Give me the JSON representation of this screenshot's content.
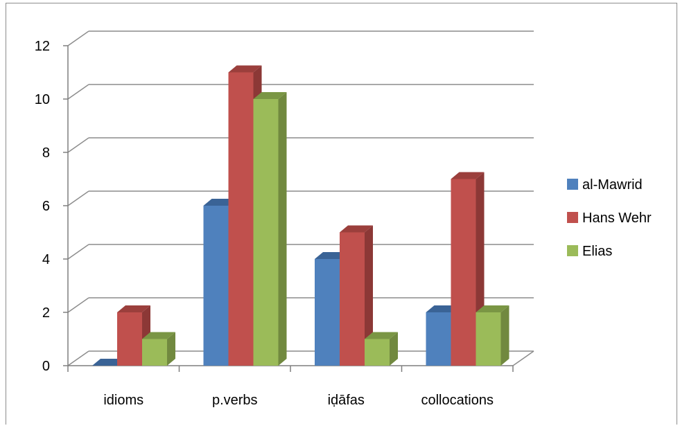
{
  "chart_data": {
    "type": "bar",
    "categories": [
      "idioms",
      "p.verbs",
      "iḍāfas",
      "collocations"
    ],
    "series": [
      {
        "name": "al-Mawrid",
        "values": [
          0,
          6,
          4,
          2
        ],
        "color": "#4F81BD",
        "side_color": "#385D8A",
        "top_color": "#3A6396"
      },
      {
        "name": "Hans Wehr",
        "values": [
          2,
          11,
          5,
          7
        ],
        "color": "#C0504D",
        "side_color": "#8C3836",
        "top_color": "#9B3F3C"
      },
      {
        "name": "Elias",
        "values": [
          1,
          10,
          1,
          2
        ],
        "color": "#9BBB59",
        "side_color": "#71893F",
        "top_color": "#7A9644"
      }
    ],
    "yticks": [
      "0",
      "2",
      "4",
      "6",
      "8",
      "10",
      "12"
    ],
    "ylim": [
      0,
      12
    ],
    "grid": true,
    "legend_position": "right",
    "three_d": true
  }
}
